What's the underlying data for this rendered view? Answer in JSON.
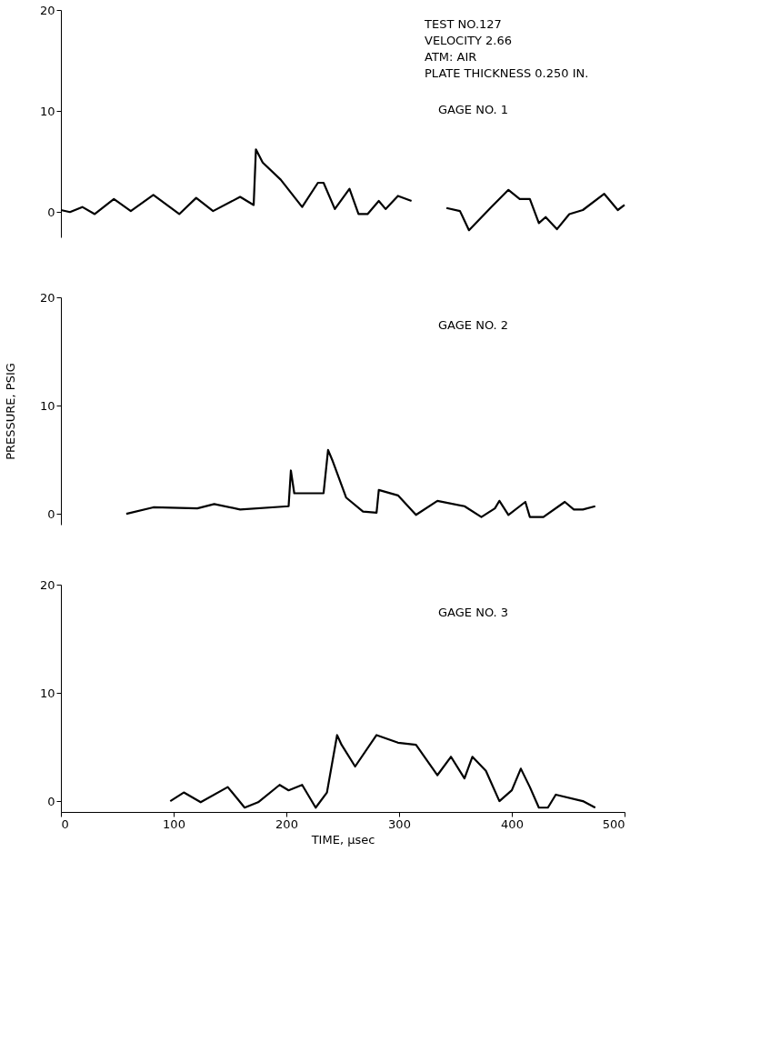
{
  "chart_data": [
    {
      "type": "line",
      "xlim": [
        0,
        500
      ],
      "ylim": [
        -2.5,
        20
      ],
      "yticks": [
        0,
        10,
        20
      ],
      "tick_labels": "y",
      "grid": false,
      "marker": "none",
      "line_style": "solid",
      "annotations": [
        "TEST NO.127",
        "VELOCITY 2.66",
        "ATM: AIR",
        "PLATE THICKNESS 0.250 IN.",
        "GAGE NO. 1"
      ],
      "series": [
        {
          "color": "#000000",
          "x": [
            0,
            8,
            19,
            30,
            47,
            62,
            82,
            105,
            120,
            135,
            159,
            171,
            173,
            179,
            195,
            214,
            228,
            233,
            243,
            256,
            264,
            272,
            282,
            288,
            299,
            311,
            325,
            342,
            354,
            362,
            381,
            397,
            407,
            416,
            424,
            430,
            440,
            451,
            463,
            482,
            494,
            500
          ],
          "values": [
            0.2,
            0,
            0.5,
            -0.2,
            1.3,
            0.1,
            1.7,
            -0.2,
            1.4,
            0.1,
            1.5,
            0.7,
            6.2,
            4.9,
            3.2,
            0.5,
            2.9,
            2.9,
            0.3,
            2.3,
            -0.2,
            -0.2,
            1.1,
            0.3,
            1.6,
            1.1,
            null,
            0.4,
            0.1,
            -1.8,
            0.4,
            2.2,
            1.3,
            1.3,
            -1.1,
            -0.5,
            -1.7,
            -0.2,
            0.2,
            1.8,
            0.2,
            0.7
          ]
        }
      ]
    },
    {
      "type": "line",
      "xlim": [
        0,
        500
      ],
      "ylim": [
        -1,
        20
      ],
      "yticks": [
        0,
        10,
        20
      ],
      "tick_labels": "y",
      "grid": false,
      "marker": "none",
      "line_style": "solid",
      "ylabel": "PRESSURE, PSIG",
      "annotations": [
        "GAGE NO. 2"
      ],
      "series": [
        {
          "color": "#000000",
          "x": [
            58,
            82,
            121,
            136,
            159,
            202,
            204,
            207,
            233,
            237,
            241,
            253,
            268,
            280,
            282,
            299,
            315,
            334,
            358,
            373,
            385,
            389,
            397,
            412,
            416,
            428,
            447,
            455,
            463,
            474
          ],
          "values": [
            0,
            0.6,
            0.5,
            0.9,
            0.4,
            0.7,
            4,
            1.9,
            1.9,
            5.9,
            4.9,
            1.5,
            0.2,
            0.1,
            2.2,
            1.7,
            -0.1,
            1.2,
            0.7,
            -0.3,
            0.5,
            1.2,
            -0.1,
            1.1,
            -0.3,
            -0.3,
            1.1,
            0.4,
            0.4,
            0.7
          ]
        }
      ]
    },
    {
      "type": "line",
      "xlim": [
        0,
        500
      ],
      "xticks": [
        0,
        100,
        200,
        300,
        400,
        500
      ],
      "ylim": [
        -1,
        20
      ],
      "yticks": [
        0,
        10,
        20
      ],
      "grid": false,
      "marker": "none",
      "line_style": "solid",
      "xlabel": "TIME, µsec",
      "annotations": [
        "GAGE NO. 3"
      ],
      "series": [
        {
          "color": "#000000",
          "x": [
            97,
            109,
            124,
            148,
            163,
            175,
            194,
            202,
            214,
            226,
            236,
            245,
            249,
            261,
            280,
            299,
            315,
            334,
            346,
            358,
            365,
            377,
            389,
            400,
            408,
            416,
            424,
            432,
            439,
            463,
            474
          ],
          "values": [
            0,
            0.8,
            -0.1,
            1.3,
            -0.6,
            -0.1,
            1.5,
            1,
            1.5,
            -0.6,
            0.8,
            6.1,
            5.2,
            3.2,
            6.1,
            5.4,
            5.2,
            2.4,
            4.1,
            2.1,
            4.1,
            2.8,
            0,
            1,
            3,
            1.3,
            -0.6,
            -0.6,
            0.6,
            0,
            -0.6
          ]
        }
      ]
    }
  ]
}
